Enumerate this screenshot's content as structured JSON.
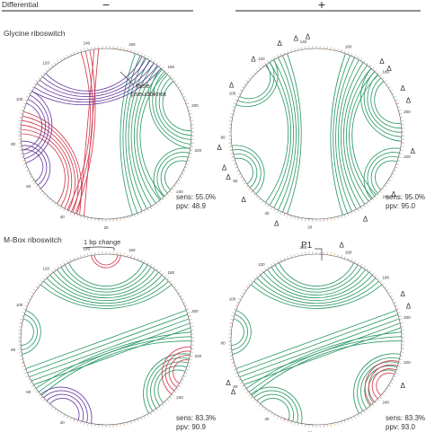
{
  "header": {
    "title": "Differential",
    "minus_symbol": "−",
    "plus_symbol": "+"
  },
  "panels": [
    {
      "row_label": "Glycine riboswitch",
      "side": "minus",
      "annotation": "false\npseudoknot",
      "sens": "sens: 55.0%",
      "ppv": "ppv: 48.9"
    },
    {
      "side": "plus",
      "sens": "sens: 95.0%",
      "ppv": "ppv: 95.0",
      "delta_symbol": "Δ"
    },
    {
      "row_label": "M-Box riboswitch",
      "side": "minus",
      "annotation": "1 bp change",
      "sens": "sens: 83.3%",
      "ppv": "ppv: 90.9"
    },
    {
      "side": "plus",
      "annotation": "P1",
      "sens": "sens: 83.3%",
      "ppv": "ppv: 93.0",
      "delta_symbol": "Δ"
    }
  ],
  "colors": {
    "green": "#2f9a6a",
    "red": "#d33c50",
    "purple": "#6a3fa0",
    "orange": "#e07b1a",
    "circle": "#555555"
  },
  "tick_labels": [
    "20",
    "40",
    "60",
    "80",
    "100",
    "120",
    "140",
    "160",
    "180",
    "200",
    "220",
    "240"
  ]
}
